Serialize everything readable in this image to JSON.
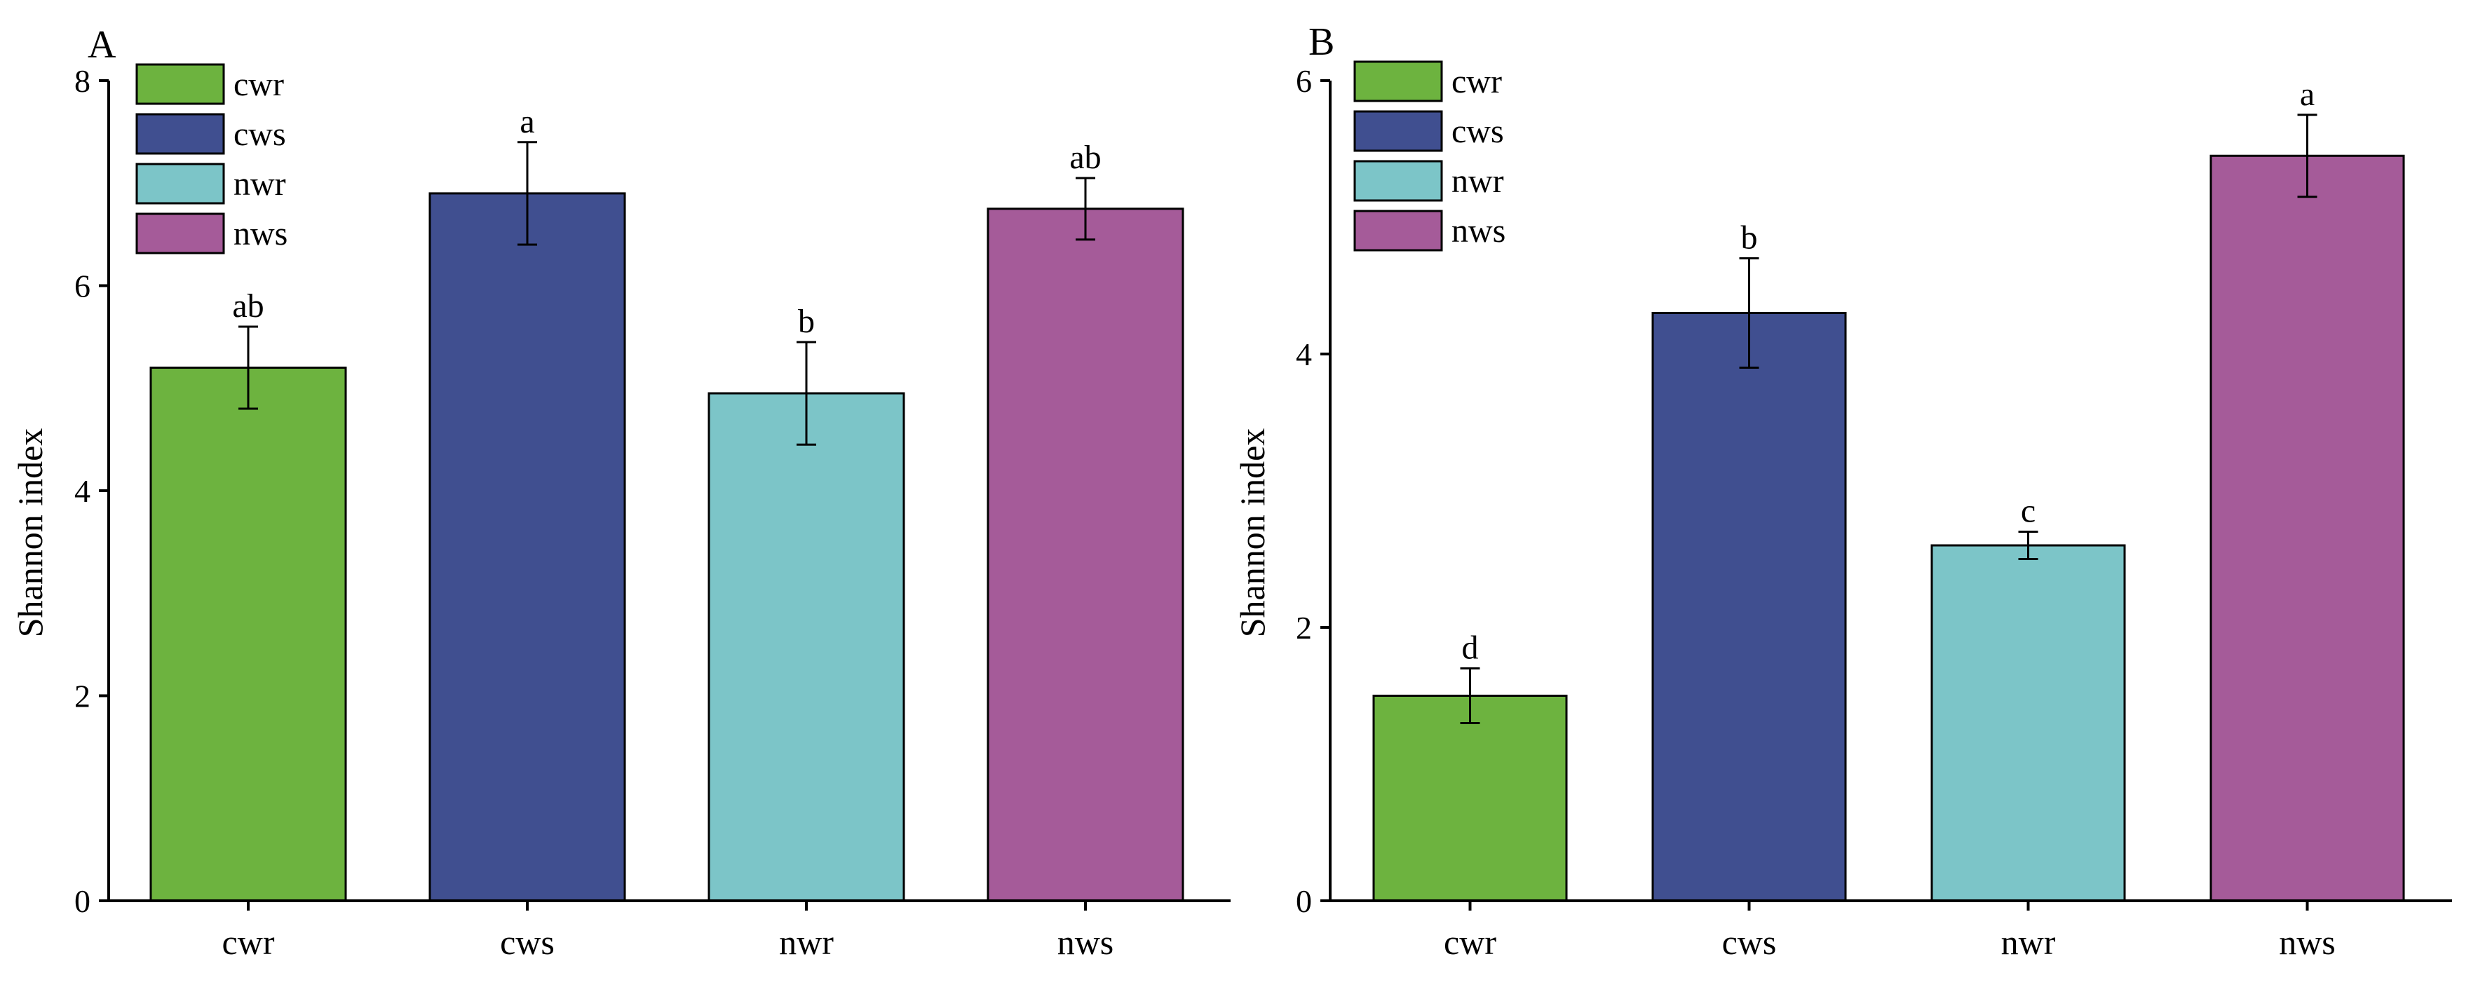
{
  "chart_data": [
    {
      "panel": "A",
      "type": "bar",
      "categories": [
        "cwr",
        "cws",
        "nwr",
        "nws"
      ],
      "values": [
        5.2,
        6.9,
        4.95,
        6.75
      ],
      "errors": [
        0.4,
        0.5,
        0.5,
        0.3
      ],
      "significance": [
        "ab",
        "a",
        "b",
        "ab"
      ],
      "colors": [
        "#6db33f",
        "#404f90",
        "#7cc5c8",
        "#a55b99"
      ],
      "xlabel": "",
      "ylabel": "Shannon index",
      "ylim": [
        0,
        8
      ],
      "yticks": [
        0,
        2,
        4,
        6,
        8
      ],
      "legend": [
        "cwr",
        "cws",
        "nwr",
        "nws"
      ],
      "legend_position": "top-left"
    },
    {
      "panel": "B",
      "type": "bar",
      "categories": [
        "cwr",
        "cws",
        "nwr",
        "nws"
      ],
      "values": [
        1.5,
        4.3,
        2.6,
        5.45
      ],
      "errors": [
        0.2,
        0.4,
        0.1,
        0.3
      ],
      "significance": [
        "d",
        "b",
        "c",
        "a"
      ],
      "colors": [
        "#6db33f",
        "#404f90",
        "#7cc5c8",
        "#a55b99"
      ],
      "xlabel": "",
      "ylabel": "Shannon index",
      "ylim": [
        0,
        6
      ],
      "yticks": [
        0,
        2,
        4,
        6
      ],
      "legend": [
        "cwr",
        "cws",
        "nwr",
        "nws"
      ],
      "legend_position": "top-left"
    }
  ]
}
